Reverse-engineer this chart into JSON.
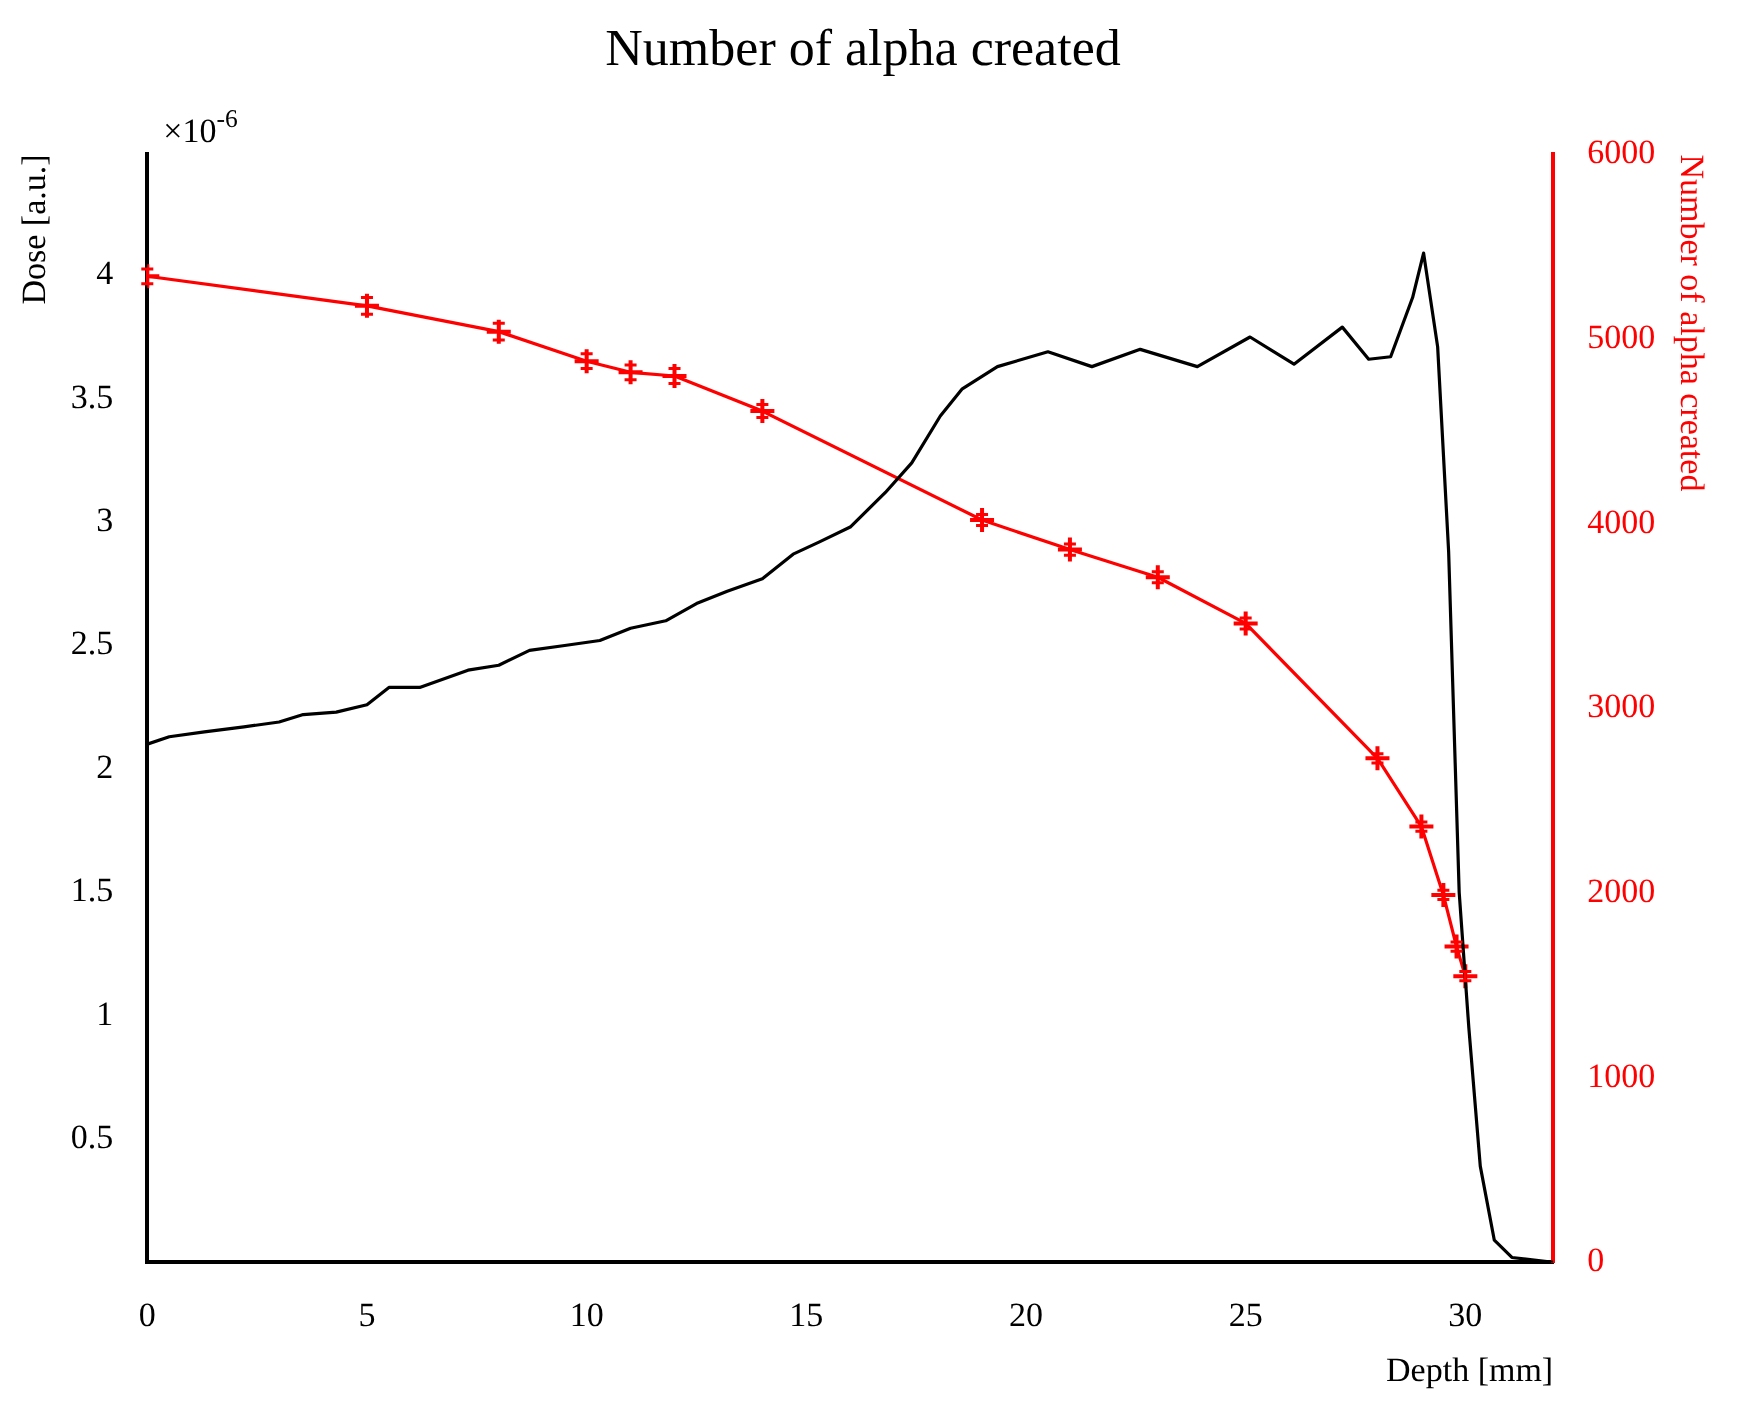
{
  "chart_data": {
    "type": "line",
    "title": "Number of alpha created",
    "xlabel": "Depth [mm]",
    "ylabel": "Dose [a.u.]",
    "y2label": "Number of alpha created",
    "annotations": [
      "×10$^{-6}$"
    ],
    "xlim": [
      0,
      32
    ],
    "xticks": [
      0,
      5,
      10,
      15,
      20,
      25,
      30
    ],
    "ylim": [
      0,
      4.49
    ],
    "yticks": [
      0.5,
      1,
      1.5,
      2,
      2.5,
      3,
      3.5,
      4
    ],
    "y2lim": [
      0,
      6000
    ],
    "y2ticks": [
      0,
      1000,
      2000,
      3000,
      4000,
      5000,
      6000
    ],
    "grid": false,
    "legend": false,
    "series": [
      {
        "color": "#000000",
        "marker": "none",
        "x": [
          0,
          0.5,
          1.3,
          2.2,
          3.0,
          3.55,
          4.3,
          5.0,
          5.5,
          6.2,
          7.3,
          8.0,
          8.7,
          9.5,
          10.3,
          11.0,
          11.8,
          12.5,
          13.2,
          14.0,
          14.7,
          15.3,
          16.0,
          16.8,
          17.4,
          18.05,
          18.55,
          19.35,
          20.5,
          21.5,
          22.6,
          23.9,
          25.1,
          26.1,
          27.2,
          27.8,
          28.3,
          28.8,
          29.05,
          29.37,
          29.62,
          29.86,
          30.08,
          30.34,
          30.66,
          31.06,
          32
        ],
        "values": [
          2.1,
          2.13,
          2.15,
          2.17,
          2.19,
          2.22,
          2.23,
          2.26,
          2.33,
          2.33,
          2.4,
          2.42,
          2.48,
          2.5,
          2.52,
          2.57,
          2.6,
          2.67,
          2.72,
          2.77,
          2.87,
          2.92,
          2.98,
          3.12,
          3.24,
          3.43,
          3.54,
          3.63,
          3.69,
          3.63,
          3.7,
          3.63,
          3.75,
          3.64,
          3.79,
          3.66,
          3.67,
          3.91,
          4.09,
          3.71,
          2.88,
          1.5,
          0.95,
          0.39,
          0.09,
          0.02,
          0
        ]
      },
      {
        "color": "#ff0000",
        "marker": "cross",
        "axis": "y2",
        "x": [
          0,
          5,
          8,
          10,
          11,
          12,
          14,
          19,
          21,
          23,
          25,
          28,
          29,
          29.5,
          29.8,
          30
        ],
        "values": [
          5340,
          5180,
          5040,
          4880,
          4820,
          4800,
          4610,
          4020,
          3860,
          3710,
          3460,
          2730,
          2360,
          1990,
          1710,
          1550
        ],
        "errors": [
          40,
          45,
          45,
          40,
          40,
          40,
          35,
          30,
          30,
          30,
          30,
          25,
          25,
          25,
          25,
          25
        ]
      }
    ]
  }
}
